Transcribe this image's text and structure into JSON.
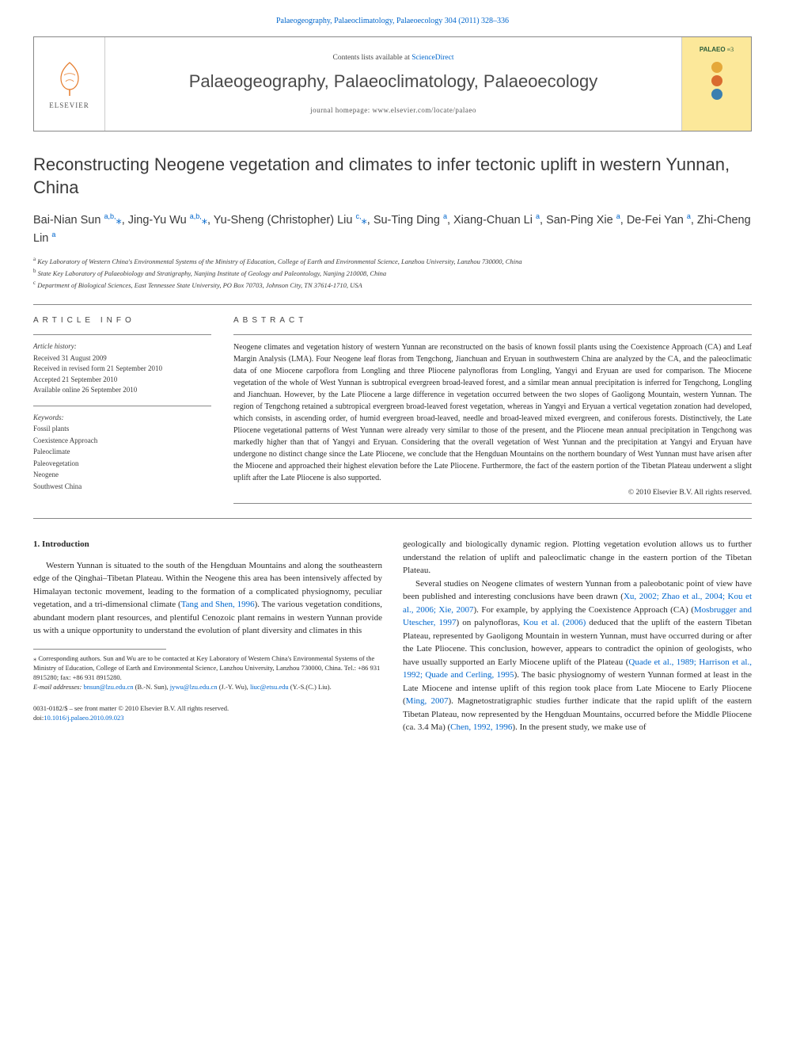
{
  "journal_ref": "Palaeogeography, Palaeoclimatology, Palaeoecology 304 (2011) 328–336",
  "header": {
    "contents_prefix": "Contents lists available at ",
    "contents_link": "ScienceDirect",
    "journal_name": "Palaeogeography, Palaeoclimatology, Palaeoecology",
    "homepage_label": "journal homepage: www.elsevier.com/locate/palaeo",
    "elsevier": "ELSEVIER",
    "palaeo_label": "PALAEO",
    "palaeo_suffix": "≡3",
    "cover_bg": "#fce89a",
    "dot_colors": [
      "#e5a83a",
      "#d96b2f",
      "#3b7fb0"
    ]
  },
  "title": "Reconstructing Neogene vegetation and climates to infer tectonic uplift in western Yunnan, China",
  "authors_html": "Bai-Nian Sun <sup>a,b,</sup><a class='star'>⁎</a>, Jing-Yu Wu <sup>a,b,</sup><a class='star'>⁎</a>, Yu-Sheng (Christopher) Liu <sup>c,</sup><a class='star'>⁎</a>, Su-Ting Ding <sup>a</sup>, Xiang-Chuan Li <sup>a</sup>, San-Ping Xie <sup>a</sup>, De-Fei Yan <sup>a</sup>, Zhi-Cheng Lin <sup>a</sup>",
  "affiliations": {
    "a": "Key Laboratory of Western China's Environmental Systems of the Ministry of Education, College of Earth and Environmental Science, Lanzhou University, Lanzhou 730000, China",
    "b": "State Key Laboratory of Palaeobiology and Stratigraphy, Nanjing Institute of Geology and Paleontology, Nanjing 210008, China",
    "c": "Department of Biological Sciences, East Tennessee State University, PO Box 70703, Johnson City, TN 37614-1710, USA"
  },
  "article_info": {
    "header": "ARTICLE INFO",
    "history_label": "Article history:",
    "history": [
      "Received 31 August 2009",
      "Received in revised form 21 September 2010",
      "Accepted 21 September 2010",
      "Available online 26 September 2010"
    ],
    "keywords_label": "Keywords:",
    "keywords": [
      "Fossil plants",
      "Coexistence Approach",
      "Paleoclimate",
      "Paleovegetation",
      "Neogene",
      "Southwest China"
    ]
  },
  "abstract": {
    "header": "ABSTRACT",
    "text": "Neogene climates and vegetation history of western Yunnan are reconstructed on the basis of known fossil plants using the Coexistence Approach (CA) and Leaf Margin Analysis (LMA). Four Neogene leaf floras from Tengchong, Jianchuan and Eryuan in southwestern China are analyzed by the CA, and the paleoclimatic data of one Miocene carpoflora from Longling and three Pliocene palynofloras from Longling, Yangyi and Eryuan are used for comparison. The Miocene vegetation of the whole of West Yunnan is subtropical evergreen broad-leaved forest, and a similar mean annual precipitation is inferred for Tengchong, Longling and Jianchuan. However, by the Late Pliocene a large difference in vegetation occurred between the two slopes of Gaoligong Mountain, western Yunnan. The region of Tengchong retained a subtropical evergreen broad-leaved forest vegetation, whereas in Yangyi and Eryuan a vertical vegetation zonation had developed, which consists, in ascending order, of humid evergreen broad-leaved, needle and broad-leaved mixed evergreen, and coniferous forests. Distinctively, the Late Pliocene vegetational patterns of West Yunnan were already very similar to those of the present, and the Pliocene mean annual precipitation in Tengchong was markedly higher than that of Yangyi and Eryuan. Considering that the overall vegetation of West Yunnan and the precipitation at Yangyi and Eryuan have undergone no distinct change since the Late Pliocene, we conclude that the Hengduan Mountains on the northern boundary of West Yunnan must have arisen after the Miocene and approached their highest elevation before the Late Pliocene. Furthermore, the fact of the eastern portion of the Tibetan Plateau underwent a slight uplift after the Late Pliocene is also supported.",
    "copyright": "© 2010 Elsevier B.V. All rights reserved."
  },
  "section": {
    "heading": "1. Introduction",
    "p1_pre": "Western Yunnan is situated to the south of the Hengduan Mountains and along the southeastern edge of the Qinghai–Tibetan Plateau. Within the Neogene this area has been intensively affected by Himalayan tectonic movement, leading to the formation of a complicated physiognomy, peculiar vegetation, and a tri-dimensional climate (",
    "p1_ref1": "Tang and Shen, 1996",
    "p1_post": "). The various vegetation conditions, abundant modern plant resources, and plentiful Cenozoic plant remains in western Yunnan provide us with a unique opportunity to understand the evolution of plant diversity and climates in this ",
    "p1_tail": "geologically and biologically dynamic region. Plotting vegetation evolution allows us to further understand the relation of uplift and paleoclimatic change in the eastern portion of the Tibetan Plateau.",
    "p2_a": "Several studies on Neogene climates of western Yunnan from a paleobotanic point of view have been published and interesting conclusions have been drawn (",
    "p2_ref1": "Xu, 2002; Zhao et al., 2004; Kou et al., 2006; Xie, 2007",
    "p2_b": "). For example, by applying the Coexistence Approach (CA) (",
    "p2_ref2": "Mosbrugger and Utescher, 1997",
    "p2_c": ") on palynofloras, ",
    "p2_ref3": "Kou et al. (2006)",
    "p2_d": " deduced that the uplift of the eastern Tibetan Plateau, represented by Gaoligong Mountain in western Yunnan, must have occurred during or after the Late Pliocene. This conclusion, however, appears to contradict the opinion of geologists, who have usually supported an Early Miocene uplift of the Plateau (",
    "p2_ref4": "Quade et al., 1989; Harrison et al., 1992; Quade and Cerling, 1995",
    "p2_e": "). The basic physiognomy of western Yunnan formed at least in the Late Miocene and intense uplift of this region took place from Late Miocene to Early Pliocene (",
    "p2_ref5": "Ming, 2007",
    "p2_f": "). Magnetostratigraphic studies further indicate that the rapid uplift of the eastern Tibetan Plateau, now represented by the Hengduan Mountains, occurred before the Middle Pliocene (ca. 3.4 Ma) (",
    "p2_ref6": "Chen, 1992, 1996",
    "p2_g": "). In the present study, we make use of"
  },
  "footnote": {
    "star": "⁎",
    "corr_text": " Corresponding authors. Sun and Wu are to be contacted at Key Laboratory of Western China's Environmental Systems of the Ministry of Education, College of Earth and Environmental Science, Lanzhou University, Lanzhou 730000, China. Tel.: +86 931 8915280; fax: +86 931 8915280.",
    "email_label": "E-mail addresses: ",
    "emails": [
      {
        "addr": "bnsun@lzu.edu.cn",
        "who": " (B.-N. Sun), "
      },
      {
        "addr": "jywu@lzu.edu.cn",
        "who": " (J.-Y. Wu), "
      },
      {
        "addr": "liuc@etsu.edu",
        "who": " (Y.-S.(C.) Liu)."
      }
    ]
  },
  "bottom": {
    "line1": "0031-0182/$ – see front matter © 2010 Elsevier B.V. All rights reserved.",
    "doi_prefix": "doi:",
    "doi": "10.1016/j.palaeo.2010.09.023"
  }
}
